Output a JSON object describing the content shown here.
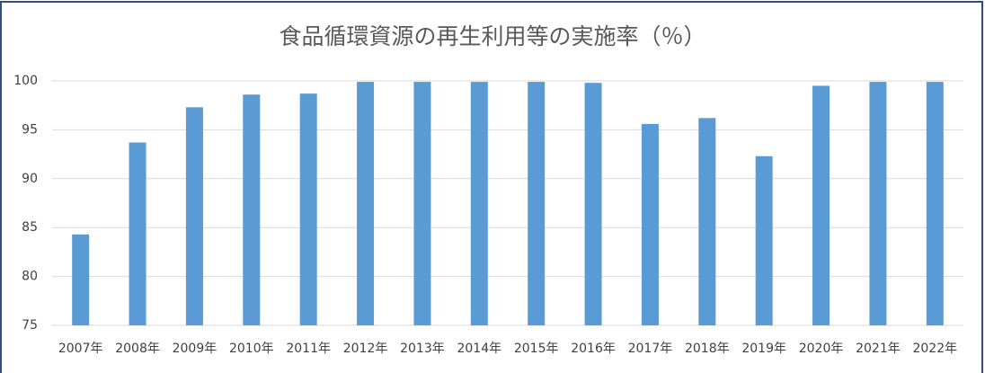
{
  "chart_data": {
    "type": "bar",
    "title": "食品循環資源の再生利用等の実施率（％）",
    "categories": [
      "2007年",
      "2008年",
      "2009年",
      "2010年",
      "2011年",
      "2012年",
      "2013年",
      "2014年",
      "2015年",
      "2016年",
      "2017年",
      "2018年",
      "2019年",
      "2020年",
      "2021年",
      "2022年"
    ],
    "values": [
      84.3,
      93.7,
      97.3,
      98.6,
      98.7,
      99.9,
      99.9,
      99.9,
      99.9,
      99.8,
      95.6,
      96.2,
      92.3,
      99.5,
      99.9,
      99.9
    ],
    "color": "#5b9bd5",
    "ylim": [
      75,
      100
    ],
    "yticks": [
      75,
      80,
      85,
      90,
      95,
      100
    ],
    "grid": true
  }
}
